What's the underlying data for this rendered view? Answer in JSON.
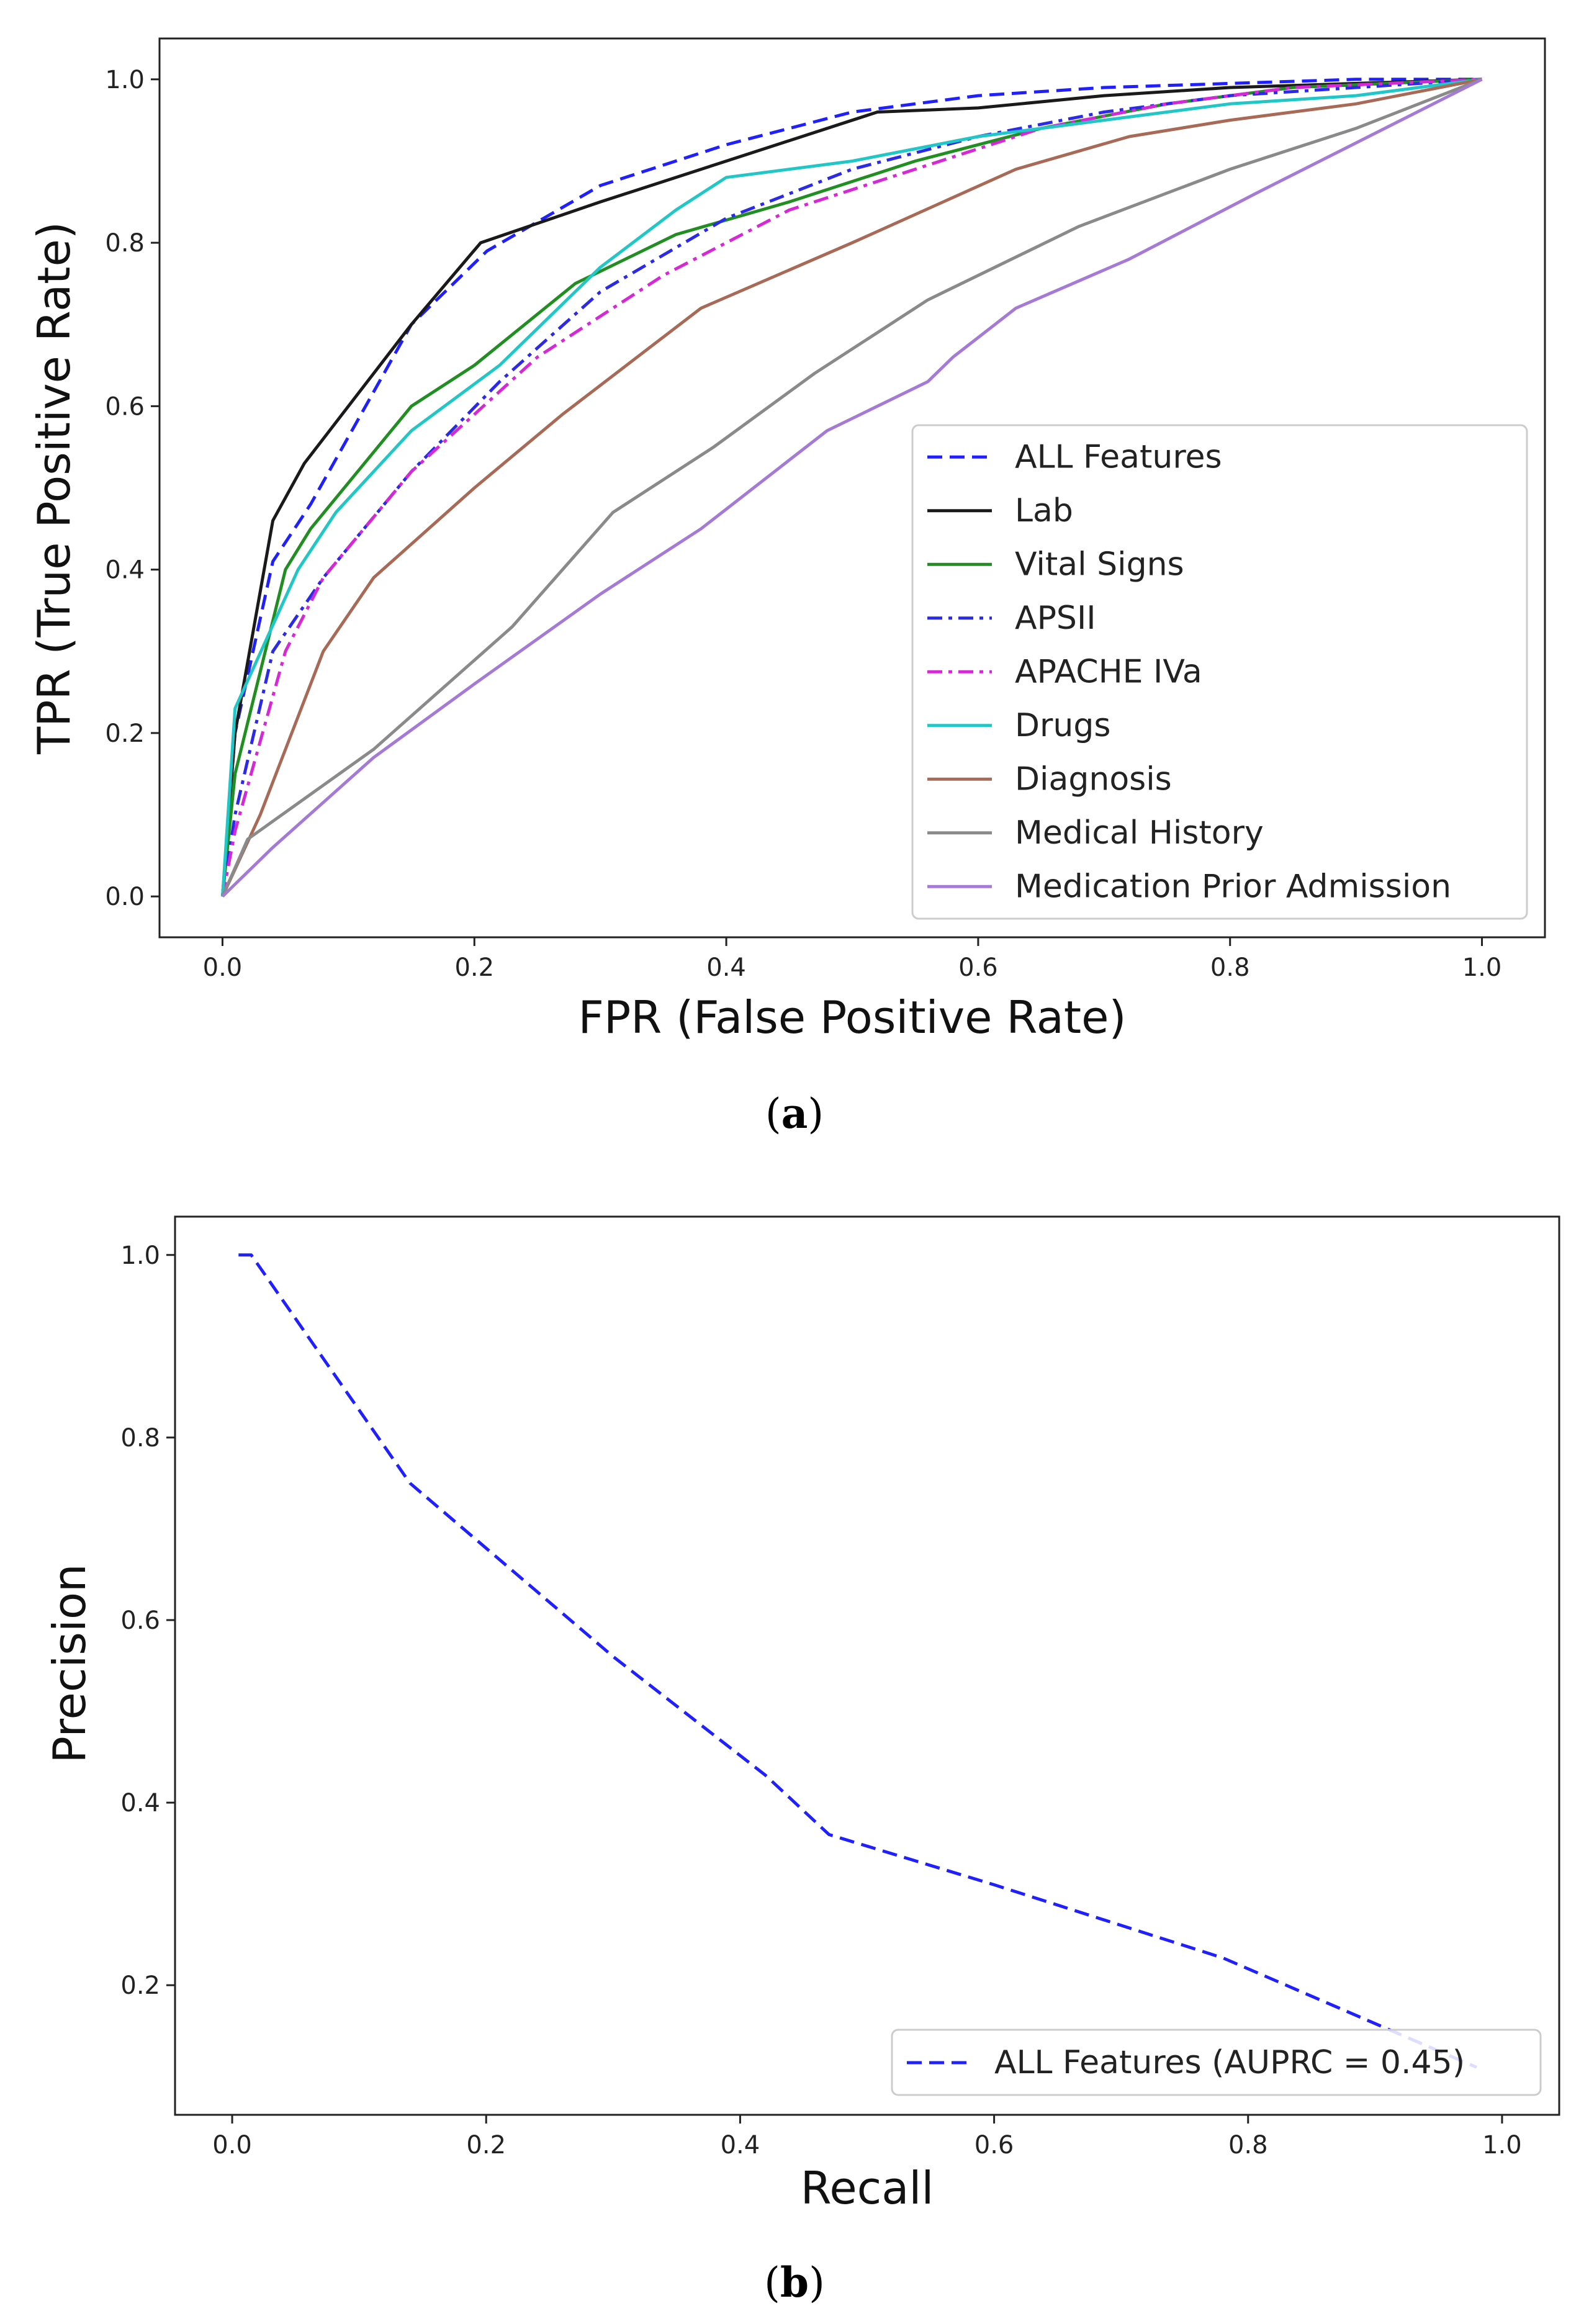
{
  "chart_data": [
    {
      "type": "line",
      "panel": "a",
      "caption": {
        "open": "(",
        "letter": "a",
        "close": ")"
      },
      "title": "",
      "xlabel": "FPR (False Positive Rate)",
      "ylabel": "TPR (True Positive Rate)",
      "xlim": [
        -0.05,
        1.05
      ],
      "ylim": [
        -0.05,
        1.05
      ],
      "xticks": [
        "0.0",
        "0.2",
        "0.4",
        "0.6",
        "0.8",
        "1.0"
      ],
      "yticks": [
        "0.0",
        "0.2",
        "0.4",
        "0.6",
        "0.8",
        "1.0"
      ],
      "grid": false,
      "legend_position": "lower-right",
      "series": [
        {
          "name": "ALL Features",
          "color": "#2020ff",
          "style": "dashed",
          "x": [
            0,
            0.01,
            0.04,
            0.07,
            0.15,
            0.21,
            0.3,
            0.4,
            0.5,
            0.6,
            0.7,
            0.8,
            0.9,
            1.0
          ],
          "y": [
            0,
            0.2,
            0.41,
            0.48,
            0.7,
            0.79,
            0.87,
            0.92,
            0.96,
            0.98,
            0.99,
            0.995,
            1.0,
            1.0
          ]
        },
        {
          "name": "Lab",
          "color": "#1a1a1a",
          "style": "solid",
          "x": [
            0,
            0.01,
            0.04,
            0.065,
            0.15,
            0.205,
            0.3,
            0.4,
            0.52,
            0.6,
            0.7,
            0.8,
            0.9,
            1.0
          ],
          "y": [
            0,
            0.2,
            0.46,
            0.53,
            0.7,
            0.8,
            0.85,
            0.9,
            0.96,
            0.965,
            0.98,
            0.99,
            0.995,
            1.0
          ]
        },
        {
          "name": "Vital Signs",
          "color": "#218e21",
          "style": "solid",
          "x": [
            0,
            0.01,
            0.05,
            0.07,
            0.15,
            0.2,
            0.28,
            0.36,
            0.45,
            0.55,
            0.65,
            0.75,
            0.85,
            1.0
          ],
          "y": [
            0,
            0.15,
            0.4,
            0.45,
            0.6,
            0.65,
            0.75,
            0.81,
            0.85,
            0.9,
            0.94,
            0.97,
            0.99,
            1.0
          ]
        },
        {
          "name": "APSII",
          "color": "#2a2ae8",
          "style": "dashdot",
          "x": [
            0,
            0.01,
            0.04,
            0.08,
            0.15,
            0.22,
            0.3,
            0.4,
            0.5,
            0.6,
            0.7,
            0.8,
            0.9,
            1.0
          ],
          "y": [
            0,
            0.1,
            0.3,
            0.39,
            0.52,
            0.63,
            0.74,
            0.83,
            0.89,
            0.93,
            0.96,
            0.98,
            0.99,
            1.0
          ]
        },
        {
          "name": "APACHE IVa",
          "color": "#d628d6",
          "style": "dashdot",
          "x": [
            0,
            0.01,
            0.05,
            0.08,
            0.15,
            0.25,
            0.35,
            0.45,
            0.55,
            0.65,
            0.75,
            0.85,
            1.0
          ],
          "y": [
            0,
            0.08,
            0.3,
            0.39,
            0.52,
            0.66,
            0.76,
            0.84,
            0.89,
            0.94,
            0.97,
            0.99,
            1.0
          ]
        },
        {
          "name": "Drugs",
          "color": "#21c6c6",
          "style": "solid",
          "x": [
            0,
            0.01,
            0.06,
            0.09,
            0.15,
            0.22,
            0.3,
            0.36,
            0.4,
            0.5,
            0.6,
            0.7,
            0.8,
            0.9,
            1.0
          ],
          "y": [
            0,
            0.23,
            0.4,
            0.47,
            0.57,
            0.65,
            0.77,
            0.84,
            0.88,
            0.9,
            0.93,
            0.95,
            0.97,
            0.98,
            1.0
          ]
        },
        {
          "name": "Diagnosis",
          "color": "#a86a57",
          "style": "solid",
          "x": [
            0,
            0.03,
            0.08,
            0.12,
            0.2,
            0.27,
            0.38,
            0.5,
            0.63,
            0.72,
            0.8,
            0.9,
            1.0
          ],
          "y": [
            0,
            0.1,
            0.3,
            0.39,
            0.5,
            0.59,
            0.72,
            0.8,
            0.89,
            0.93,
            0.95,
            0.97,
            1.0
          ]
        },
        {
          "name": "Medical History",
          "color": "#8a8a8a",
          "style": "solid",
          "x": [
            0,
            0.02,
            0.12,
            0.23,
            0.31,
            0.39,
            0.47,
            0.56,
            0.68,
            0.8,
            0.9,
            1.0
          ],
          "y": [
            0,
            0.07,
            0.18,
            0.33,
            0.47,
            0.55,
            0.64,
            0.73,
            0.82,
            0.89,
            0.94,
            1.0
          ]
        },
        {
          "name": "Medication Prior Admission",
          "color": "#a57ad6",
          "style": "solid",
          "x": [
            0,
            0.04,
            0.12,
            0.2,
            0.3,
            0.38,
            0.48,
            0.56,
            0.58,
            0.63,
            0.72,
            0.82,
            0.91,
            1.0
          ],
          "y": [
            0,
            0.06,
            0.17,
            0.26,
            0.37,
            0.45,
            0.57,
            0.63,
            0.66,
            0.72,
            0.78,
            0.86,
            0.93,
            1.0
          ]
        }
      ]
    },
    {
      "type": "line",
      "panel": "b",
      "caption": {
        "open": "(",
        "letter": "b",
        "close": ")"
      },
      "title": "",
      "xlabel": "Recall",
      "ylabel": "Precision",
      "xlim": [
        -0.045,
        1.045
      ],
      "ylim": [
        0.058,
        1.042
      ],
      "xticks": [
        "0.0",
        "0.2",
        "0.4",
        "0.6",
        "0.8",
        "1.0"
      ],
      "yticks": [
        "0.2",
        "0.4",
        "0.6",
        "0.8",
        "1.0"
      ],
      "grid": false,
      "legend_position": "lower-right",
      "series": [
        {
          "name": "ALL Features (AUPRC = 0.45)",
          "color": "#2020ff",
          "style": "dashed",
          "x": [
            0.005,
            0.015,
            0.02,
            0.14,
            0.3,
            0.42,
            0.47,
            0.6,
            0.78,
            0.98
          ],
          "y": [
            1.0,
            1.0,
            0.99,
            0.75,
            0.56,
            0.43,
            0.365,
            0.31,
            0.23,
            0.11
          ]
        }
      ]
    }
  ]
}
